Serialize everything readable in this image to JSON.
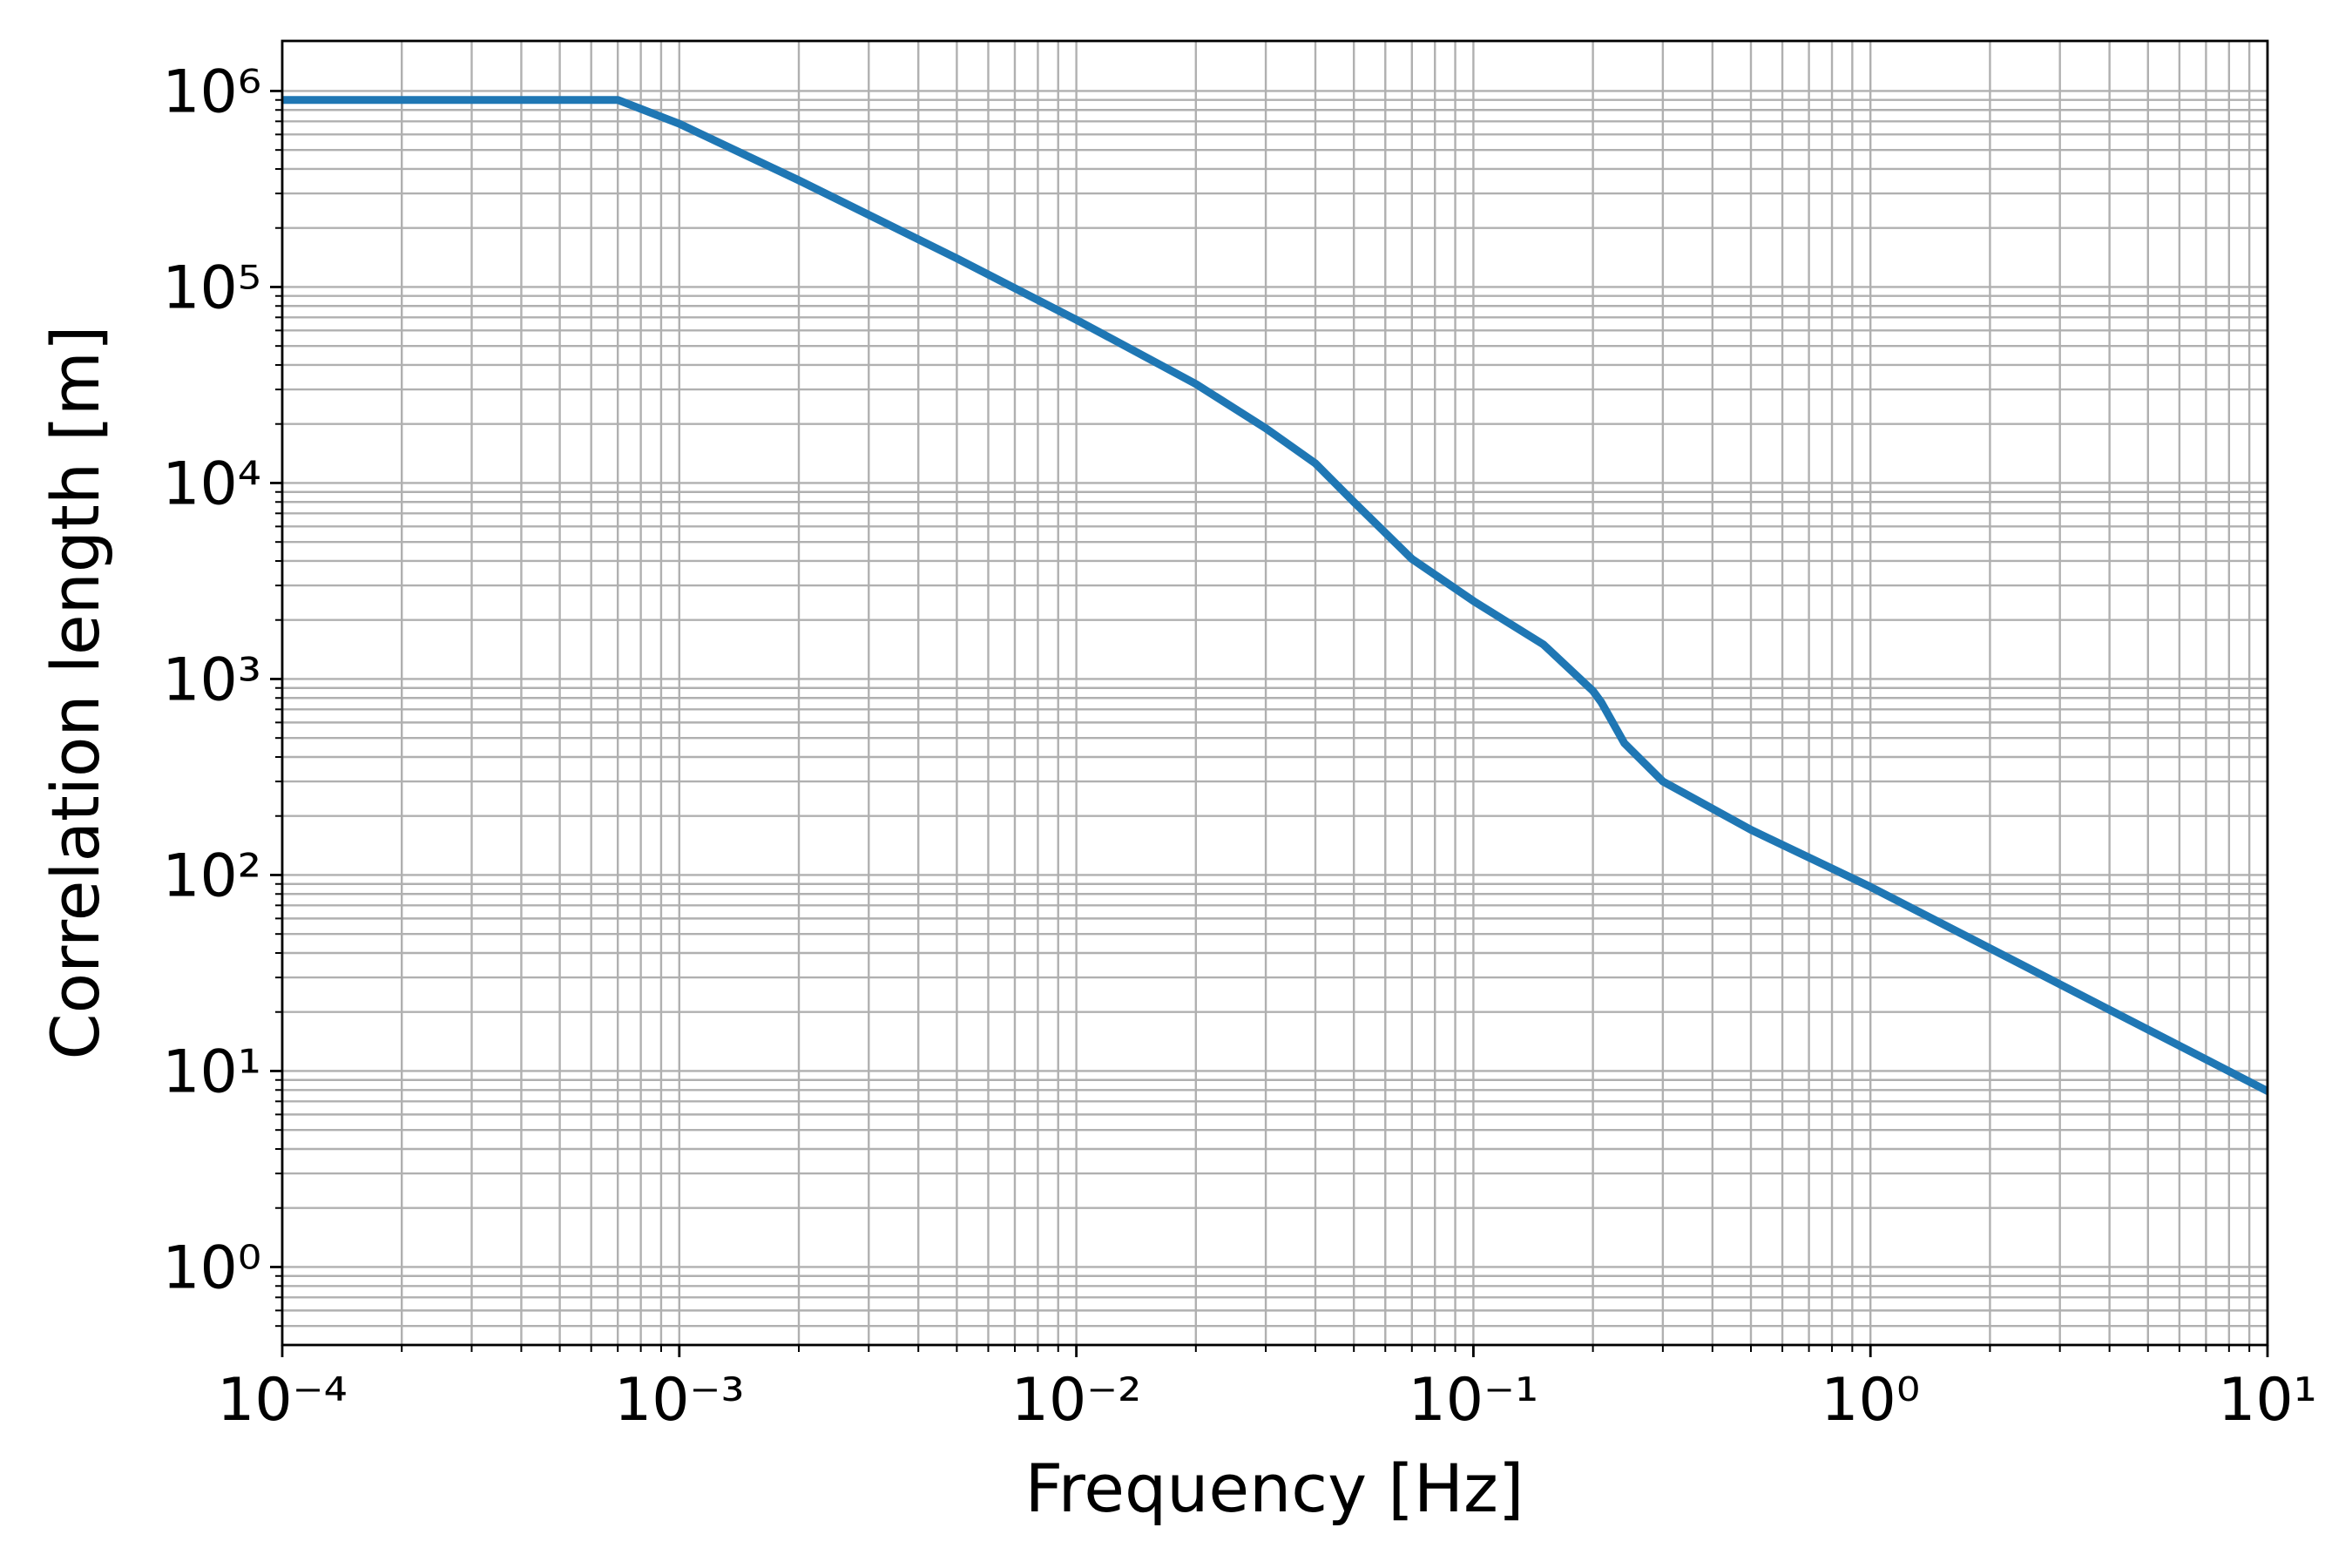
{
  "chart_data": {
    "type": "line",
    "xlabel": "Frequency [Hz]",
    "ylabel": "Correlation length [m]",
    "x": [
      0.0001,
      0.0007,
      0.001,
      0.002,
      0.005,
      0.01,
      0.02,
      0.03,
      0.04,
      0.05,
      0.07,
      0.1,
      0.15,
      0.2,
      0.21,
      0.24,
      0.3,
      0.5,
      1,
      10
    ],
    "values": [
      900000,
      900000,
      680000,
      350000,
      140000,
      68000,
      32000,
      19000,
      12600,
      8000,
      4100,
      2500,
      1500,
      870,
      760,
      470,
      300,
      170,
      87,
      7.9
    ],
    "color": "#1f77b4",
    "xscale": "log",
    "yscale": "log",
    "xlim": [
      0.0001,
      10
    ],
    "ylim": [
      0.4,
      1800000
    ],
    "xticks": [
      {
        "value": 0.0001,
        "label": "10⁻⁴"
      },
      {
        "value": 0.001,
        "label": "10⁻³"
      },
      {
        "value": 0.01,
        "label": "10⁻²"
      },
      {
        "value": 0.1,
        "label": "10⁻¹"
      },
      {
        "value": 1,
        "label": "10⁰"
      },
      {
        "value": 10,
        "label": "10¹"
      }
    ],
    "yticks": [
      {
        "value": 1,
        "label": "10⁰"
      },
      {
        "value": 10,
        "label": "10¹"
      },
      {
        "value": 100,
        "label": "10²"
      },
      {
        "value": 1000,
        "label": "10³"
      },
      {
        "value": 10000,
        "label": "10⁴"
      },
      {
        "value": 100000,
        "label": "10⁵"
      },
      {
        "value": 1000000,
        "label": "10⁶"
      }
    ],
    "grid": "both"
  }
}
